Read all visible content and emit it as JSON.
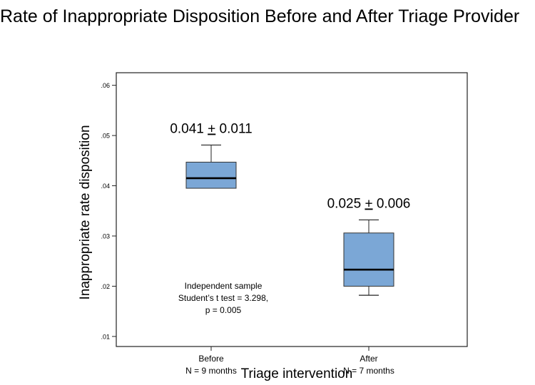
{
  "chart_data": {
    "type": "boxplot",
    "title": "Rate of Inappropriate Disposition Before and After Triage Provider",
    "xlabel": "Triage intervention",
    "ylabel": "Inappropriate rate disposition",
    "ylim": [
      0.008,
      0.0625
    ],
    "yticks": [
      ".01",
      ".02",
      ".03",
      ".04",
      ".05",
      ".06"
    ],
    "ytick_values": [
      0.01,
      0.02,
      0.03,
      0.04,
      0.05,
      0.06
    ],
    "categories": [
      {
        "label": "Before",
        "sublabel": "N = 9 months"
      },
      {
        "label": "After",
        "sublabel": "N = 7 months"
      }
    ],
    "boxes": [
      {
        "whisker_low": 0.0395,
        "q1": 0.0395,
        "median": 0.0415,
        "q3": 0.0447,
        "whisker_high": 0.0481,
        "annotation_mean": "0.041",
        "annotation_pm": "+",
        "annotation_sd": "0.011"
      },
      {
        "whisker_low": 0.0182,
        "q1": 0.02,
        "median": 0.0233,
        "q3": 0.0306,
        "whisker_high": 0.0332,
        "annotation_mean": "0.025",
        "annotation_pm": "+",
        "annotation_sd": "0.006"
      }
    ],
    "stats_text": [
      "Independent sample",
      "Student’s t test = 3.298,",
      "p = 0.005"
    ],
    "box_color": "#7BA7D6",
    "grid": false
  }
}
